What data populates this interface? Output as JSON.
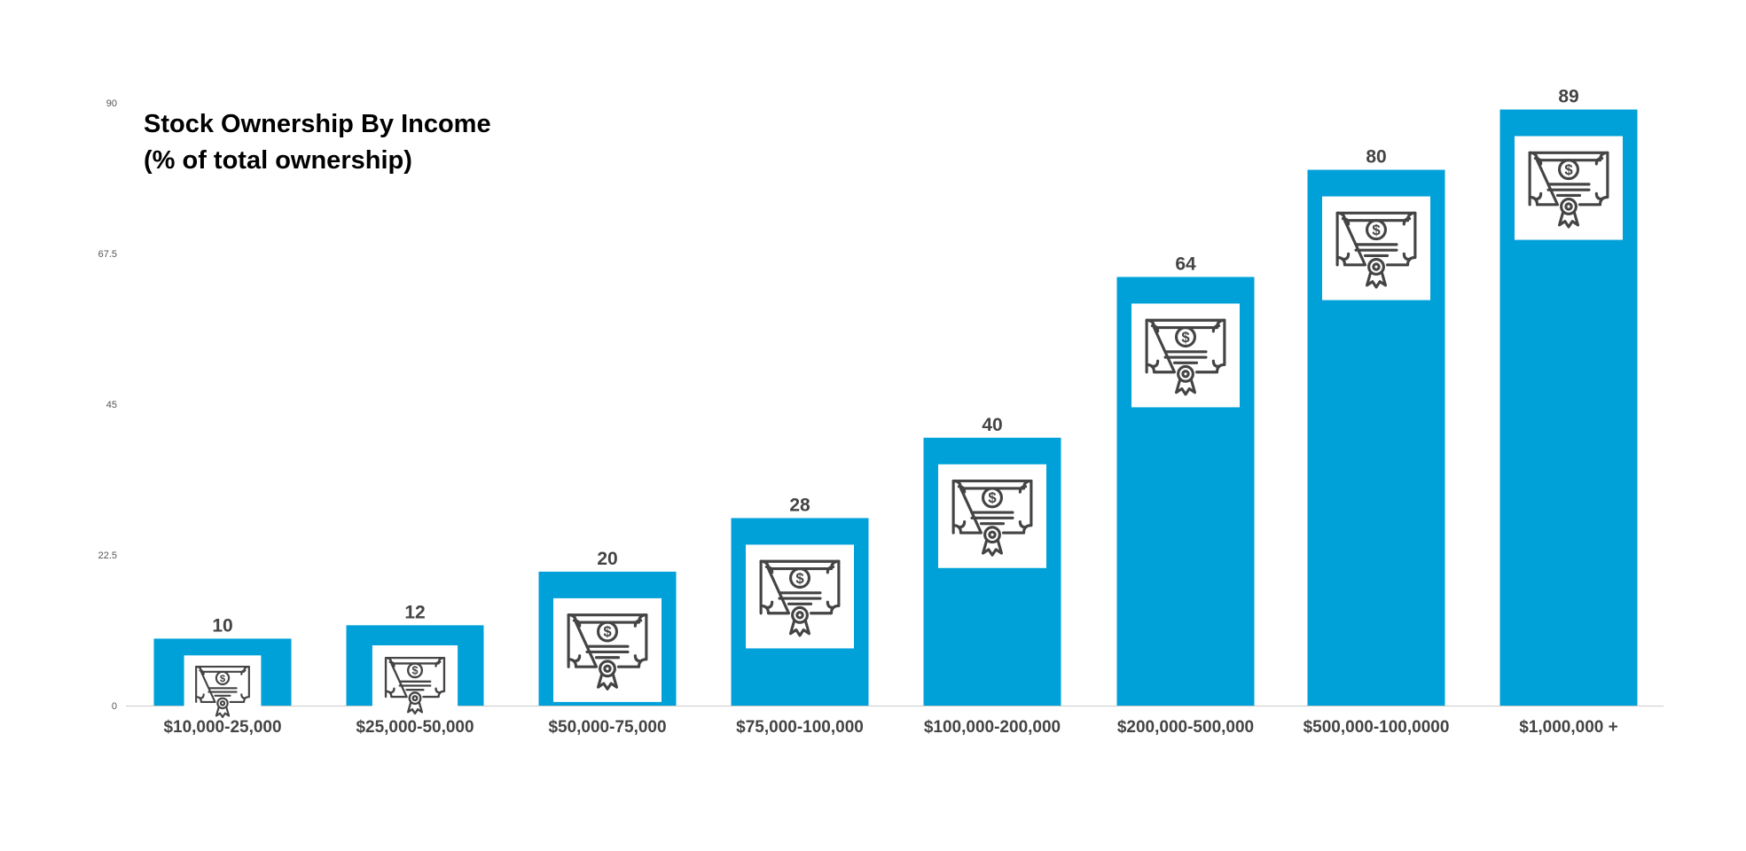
{
  "chart_data": {
    "type": "bar",
    "title": "Stock Ownership By Income",
    "subtitle": "(% of total ownership)",
    "xlabel": "",
    "ylabel": "",
    "categories": [
      "$10,000-25,000",
      "$25,000-50,000",
      "$50,000-75,000",
      "$75,000-100,000",
      "$100,000-200,000",
      "$200,000-500,000",
      "$500,000-100,0000",
      "$1,000,000 +"
    ],
    "values": [
      10,
      12,
      20,
      28,
      40,
      64,
      80,
      89
    ],
    "ylim": [
      0,
      90
    ],
    "yticks": [
      0,
      22.5,
      45,
      67.5,
      90
    ],
    "ytick_labels": [
      "0",
      "22.5",
      "45",
      "67.5",
      "90"
    ],
    "data_labels": [
      "10",
      "12",
      "20",
      "28",
      "40",
      "64",
      "80",
      "89"
    ],
    "grid": false,
    "legend": "none",
    "colors": {
      "bar": "#00a1d8",
      "icon_frame": "#ffffff",
      "icon": "#444444",
      "label": "#444444",
      "axis": "#cccccc",
      "tick_label": "#555555",
      "title": "#000000"
    },
    "bar_icon": "stock-certificate-icon"
  }
}
